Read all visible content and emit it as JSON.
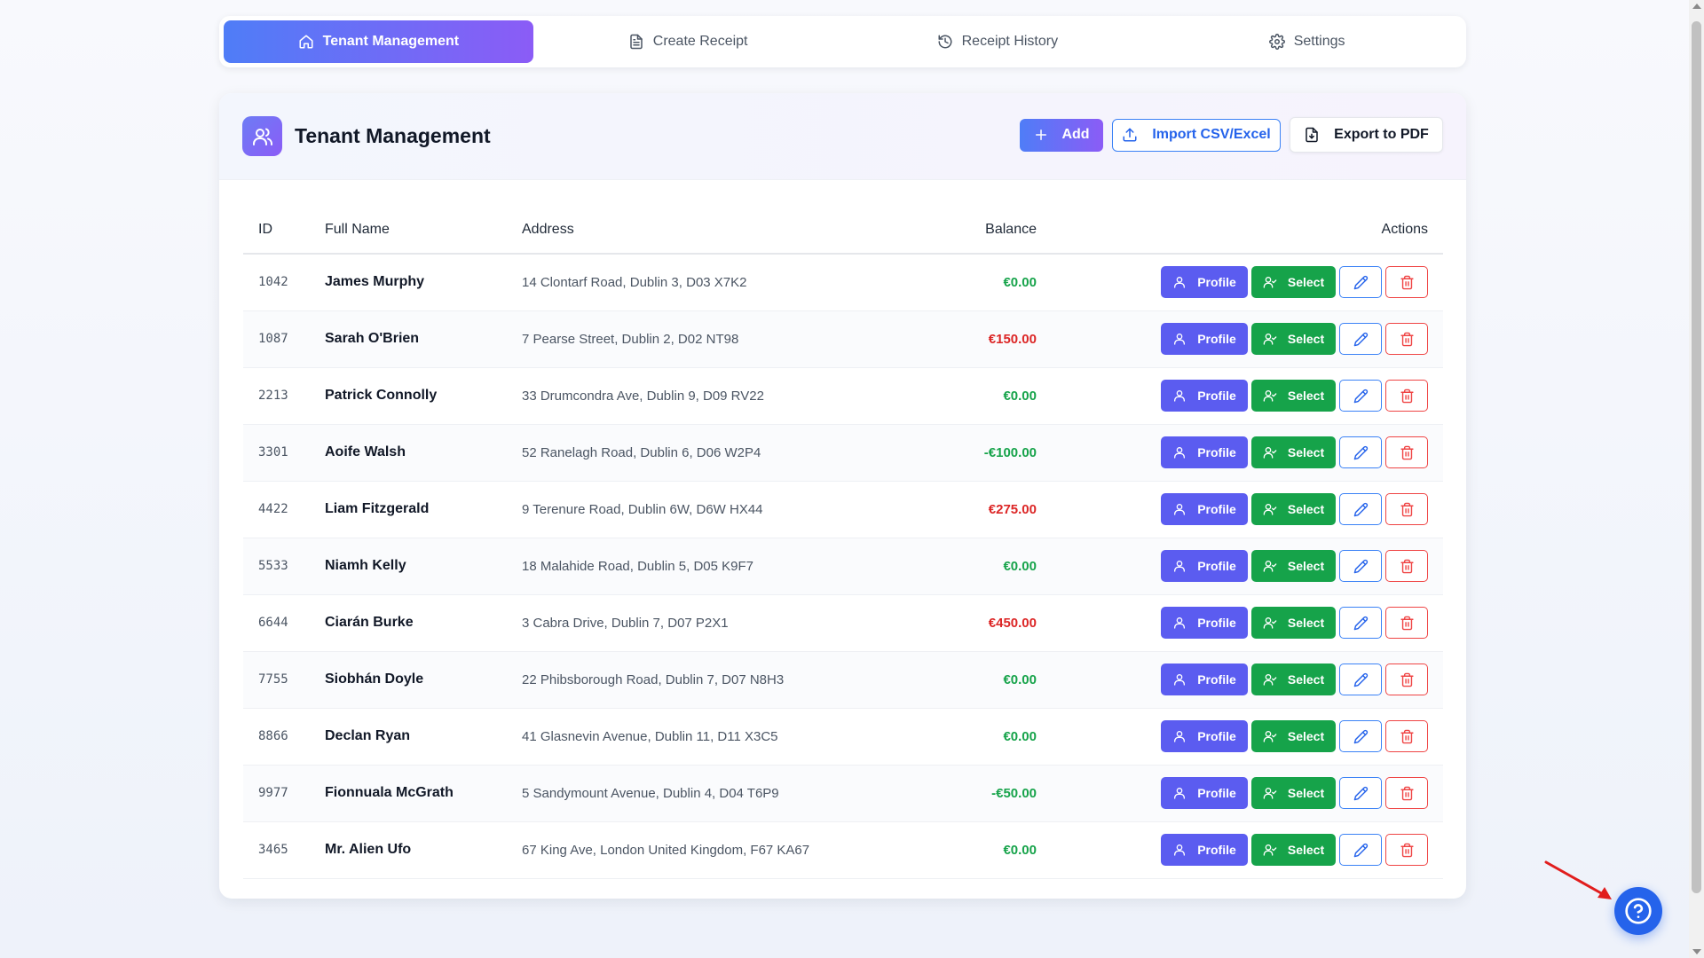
{
  "tabs": [
    {
      "label": "Tenant Management",
      "icon": "home-icon",
      "active": true
    },
    {
      "label": "Create Receipt",
      "icon": "document-icon",
      "active": false
    },
    {
      "label": "Receipt History",
      "icon": "history-icon",
      "active": false
    },
    {
      "label": "Settings",
      "icon": "gear-icon",
      "active": false
    }
  ],
  "card": {
    "title": "Tenant Management",
    "icon": "users-icon",
    "add_label": "Add",
    "import_label": "Import CSV/Excel",
    "export_label": "Export to PDF"
  },
  "table": {
    "headers": {
      "id": "ID",
      "name": "Full Name",
      "address": "Address",
      "balance": "Balance",
      "actions": "Actions"
    },
    "profile_label": "Profile",
    "select_label": "Select",
    "rows": [
      {
        "id": "1042",
        "name": "James Murphy",
        "address": "14 Clontarf Road, Dublin 3, D03 X7K2",
        "balance": "€0.00",
        "status": "green"
      },
      {
        "id": "1087",
        "name": "Sarah O'Brien",
        "address": "7 Pearse Street, Dublin 2, D02 NT98",
        "balance": "€150.00",
        "status": "red"
      },
      {
        "id": "2213",
        "name": "Patrick Connolly",
        "address": "33 Drumcondra Ave, Dublin 9, D09 RV22",
        "balance": "€0.00",
        "status": "green"
      },
      {
        "id": "3301",
        "name": "Aoife Walsh",
        "address": "52 Ranelagh Road, Dublin 6, D06 W2P4",
        "balance": "-€100.00",
        "status": "green"
      },
      {
        "id": "4422",
        "name": "Liam Fitzgerald",
        "address": "9 Terenure Road, Dublin 6W, D6W HX44",
        "balance": "€275.00",
        "status": "red"
      },
      {
        "id": "5533",
        "name": "Niamh Kelly",
        "address": "18 Malahide Road, Dublin 5, D05 K9F7",
        "balance": "€0.00",
        "status": "green"
      },
      {
        "id": "6644",
        "name": "Ciarán Burke",
        "address": "3 Cabra Drive, Dublin 7, D07 P2X1",
        "balance": "€450.00",
        "status": "red"
      },
      {
        "id": "7755",
        "name": "Siobhán Doyle",
        "address": "22 Phibsborough Road, Dublin 7, D07 N8H3",
        "balance": "€0.00",
        "status": "green"
      },
      {
        "id": "8866",
        "name": "Declan Ryan",
        "address": "41 Glasnevin Avenue, Dublin 11, D11 X3C5",
        "balance": "€0.00",
        "status": "green"
      },
      {
        "id": "9977",
        "name": "Fionnuala McGrath",
        "address": "5 Sandymount Avenue, Dublin 4, D04 T6P9",
        "balance": "-€50.00",
        "status": "green"
      },
      {
        "id": "3465",
        "name": "Mr. Alien Ufo",
        "address": "67 King Ave, London United Kingdom, F67 KA67",
        "balance": "€0.00",
        "status": "green"
      }
    ]
  },
  "colors": {
    "accent_start": "#4f7df7",
    "accent_end": "#8b5cf6",
    "profile": "#5b5cf0",
    "select": "#16a34a",
    "positive": "#16a34a",
    "negative": "#dc2626",
    "help": "#2563eb"
  },
  "help_button_icon": "help-circle-icon"
}
